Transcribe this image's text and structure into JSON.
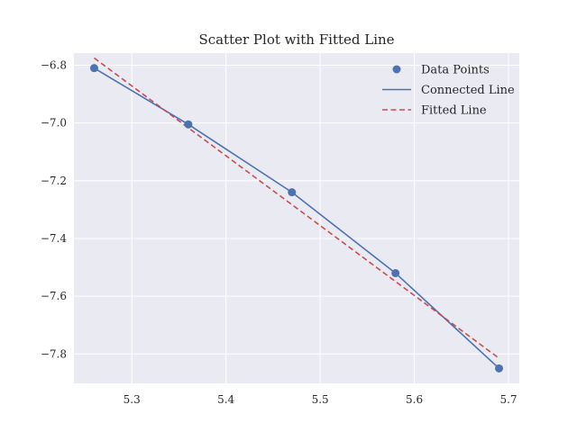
{
  "chart_data": {
    "type": "scatter",
    "title": "Scatter Plot with Fitted Line",
    "xlabel": "",
    "ylabel": "",
    "xlim": [
      5.2385,
      5.7115
    ],
    "ylim": [
      -7.902,
      -6.758
    ],
    "xticks": [
      5.3,
      5.4,
      5.5,
      5.6,
      5.7
    ],
    "xtick_labels": [
      "5.3",
      "5.4",
      "5.5",
      "5.6",
      "5.7"
    ],
    "yticks": [
      -6.8,
      -7.0,
      -7.2,
      -7.4,
      -7.6,
      -7.8
    ],
    "ytick_labels": [
      "−6.8",
      "−7.0",
      "−7.2",
      "−7.4",
      "−7.6",
      "−7.8"
    ],
    "grid": true,
    "legend_position": "top-right",
    "series": [
      {
        "name": "Data Points",
        "kind": "scatter",
        "color": "#4c72b0",
        "x": [
          5.26,
          5.36,
          5.47,
          5.58,
          5.69
        ],
        "y": [
          -6.81,
          -7.005,
          -7.24,
          -7.52,
          -7.85
        ]
      },
      {
        "name": "Connected Line",
        "kind": "line",
        "color": "#4c72b0",
        "x": [
          5.26,
          5.36,
          5.47,
          5.58,
          5.69
        ],
        "y": [
          -6.81,
          -7.005,
          -7.24,
          -7.52,
          -7.85
        ]
      },
      {
        "name": "Fitted Line",
        "kind": "dashed-line",
        "color": "#c44e52",
        "x": [
          5.26,
          5.69
        ],
        "y": [
          -6.775,
          -7.815
        ]
      }
    ],
    "colors": {
      "plot_background": "#eaeaf2",
      "grid": "#ffffff",
      "text": "#262626"
    }
  }
}
